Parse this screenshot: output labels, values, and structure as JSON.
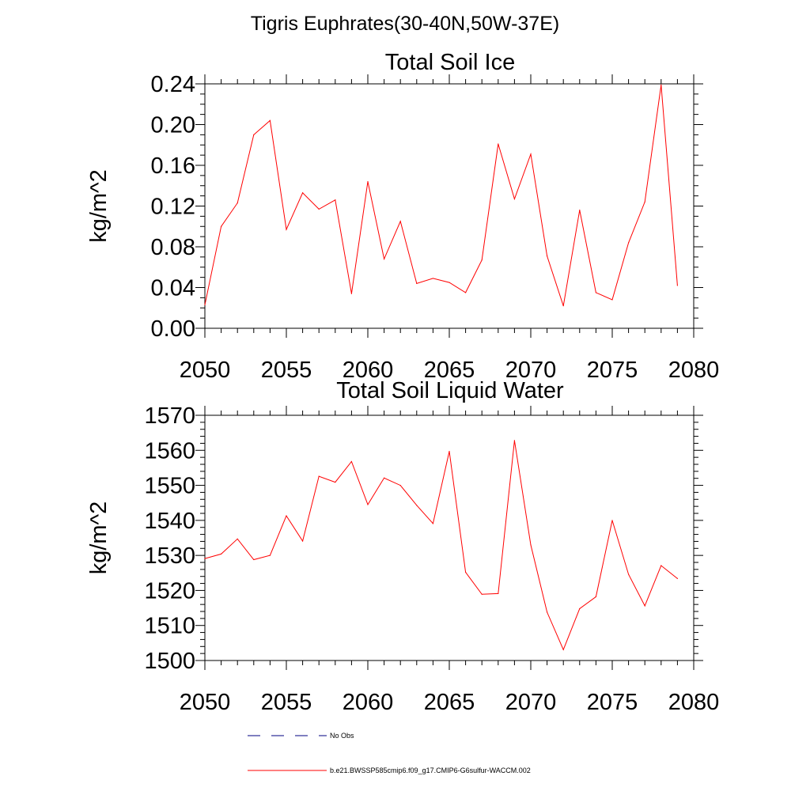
{
  "figure": {
    "title": "Tigris Euphrates(30-40N,50W-37E)"
  },
  "legend": {
    "items": [
      {
        "label": "No Obs",
        "color": "#000080",
        "style": "dashed"
      },
      {
        "label": "b.e21.BWSSP585cmip6.f09_g17.CMIP6-G6sulfur-WACCM.002",
        "color": "#ff0000",
        "style": "solid"
      }
    ]
  },
  "chart_data": [
    {
      "type": "line",
      "title": "Total Soil Ice",
      "xlabel": "",
      "ylabel": "kg/m^2",
      "xlim": [
        2050,
        2080
      ],
      "ylim": [
        0.0,
        0.24
      ],
      "x_ticks": [
        2050,
        2055,
        2060,
        2065,
        2070,
        2075,
        2080
      ],
      "x_tick_labels": [
        "2050",
        "2055",
        "2060",
        "2065",
        "2070",
        "2075",
        "2080"
      ],
      "y_ticks": [
        0.0,
        0.04,
        0.08,
        0.12,
        0.16,
        0.2,
        0.24
      ],
      "y_tick_labels": [
        "0.00",
        "0.04",
        "0.08",
        "0.12",
        "0.16",
        "0.20",
        "0.24"
      ],
      "grid": false,
      "series": [
        {
          "name": "b.e21.BWSSP585cmip6.f09_g17.CMIP6-G6sulfur-WACCM.002",
          "color": "#ff0000",
          "x": [
            2050,
            2051,
            2052,
            2053,
            2054,
            2055,
            2056,
            2057,
            2058,
            2059,
            2060,
            2061,
            2062,
            2063,
            2064,
            2065,
            2066,
            2067,
            2068,
            2069,
            2070,
            2071,
            2072,
            2073,
            2074,
            2075,
            2076,
            2077,
            2078,
            2079
          ],
          "values": [
            0.023,
            0.1,
            0.123,
            0.19,
            0.204,
            0.097,
            0.133,
            0.117,
            0.126,
            0.034,
            0.144,
            0.068,
            0.105,
            0.044,
            0.049,
            0.045,
            0.035,
            0.067,
            0.181,
            0.127,
            0.171,
            0.071,
            0.022,
            0.116,
            0.035,
            0.028,
            0.084,
            0.124,
            0.239,
            0.042
          ]
        }
      ]
    },
    {
      "type": "line",
      "title": "Total Soil Liquid Water",
      "xlabel": "",
      "ylabel": "kg/m^2",
      "xlim": [
        2050,
        2080
      ],
      "ylim": [
        1500,
        1570
      ],
      "x_ticks": [
        2050,
        2055,
        2060,
        2065,
        2070,
        2075,
        2080
      ],
      "x_tick_labels": [
        "2050",
        "2055",
        "2060",
        "2065",
        "2070",
        "2075",
        "2080"
      ],
      "y_ticks": [
        1500,
        1510,
        1520,
        1530,
        1540,
        1550,
        1560,
        1570
      ],
      "y_tick_labels": [
        "1500",
        "1510",
        "1520",
        "1530",
        "1540",
        "1550",
        "1560",
        "1570"
      ],
      "grid": false,
      "series": [
        {
          "name": "b.e21.BWSSP585cmip6.f09_g17.CMIP6-G6sulfur-WACCM.002",
          "color": "#ff0000",
          "x": [
            2050,
            2051,
            2052,
            2053,
            2054,
            2055,
            2056,
            2057,
            2058,
            2059,
            2060,
            2061,
            2062,
            2063,
            2064,
            2065,
            2066,
            2067,
            2068,
            2069,
            2070,
            2071,
            2072,
            2073,
            2074,
            2075,
            2076,
            2077,
            2078,
            2079
          ],
          "values": [
            1529.1,
            1530.4,
            1534.7,
            1528.8,
            1530.0,
            1541.3,
            1534.1,
            1552.6,
            1550.9,
            1556.8,
            1544.5,
            1552.1,
            1550.0,
            1544.3,
            1539.1,
            1559.7,
            1525.2,
            1518.9,
            1519.1,
            1562.8,
            1533.0,
            1513.8,
            1503.1,
            1514.8,
            1518.2,
            1540.0,
            1524.6,
            1515.6,
            1527.1,
            1523.4
          ]
        }
      ]
    }
  ]
}
